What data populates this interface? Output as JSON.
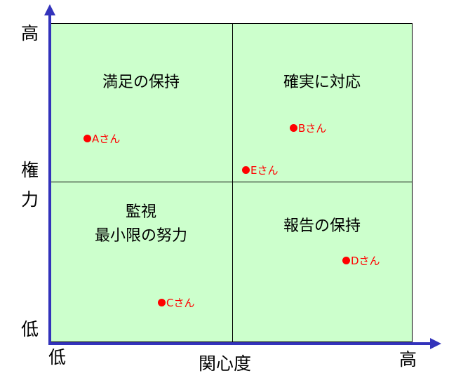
{
  "y_axis": {
    "label_chars": [
      "権",
      "力"
    ],
    "high": "高",
    "low": "低"
  },
  "x_axis": {
    "label": "関心度",
    "high": "高",
    "low": "低"
  },
  "quadrants": {
    "top_left": "満足の保持",
    "top_right": "確実に対応",
    "bottom_left": "監視\n最小限の努力",
    "bottom_right": "報告の保持"
  },
  "stakeholders": [
    {
      "name": "Aさん"
    },
    {
      "name": "Bさん"
    },
    {
      "name": "Cさん"
    },
    {
      "name": "Dさん"
    },
    {
      "name": "Eさん"
    }
  ],
  "colors": {
    "axis": "#3333bb",
    "grid_fill": "#ccffcc",
    "marker": "#ff0000"
  }
}
